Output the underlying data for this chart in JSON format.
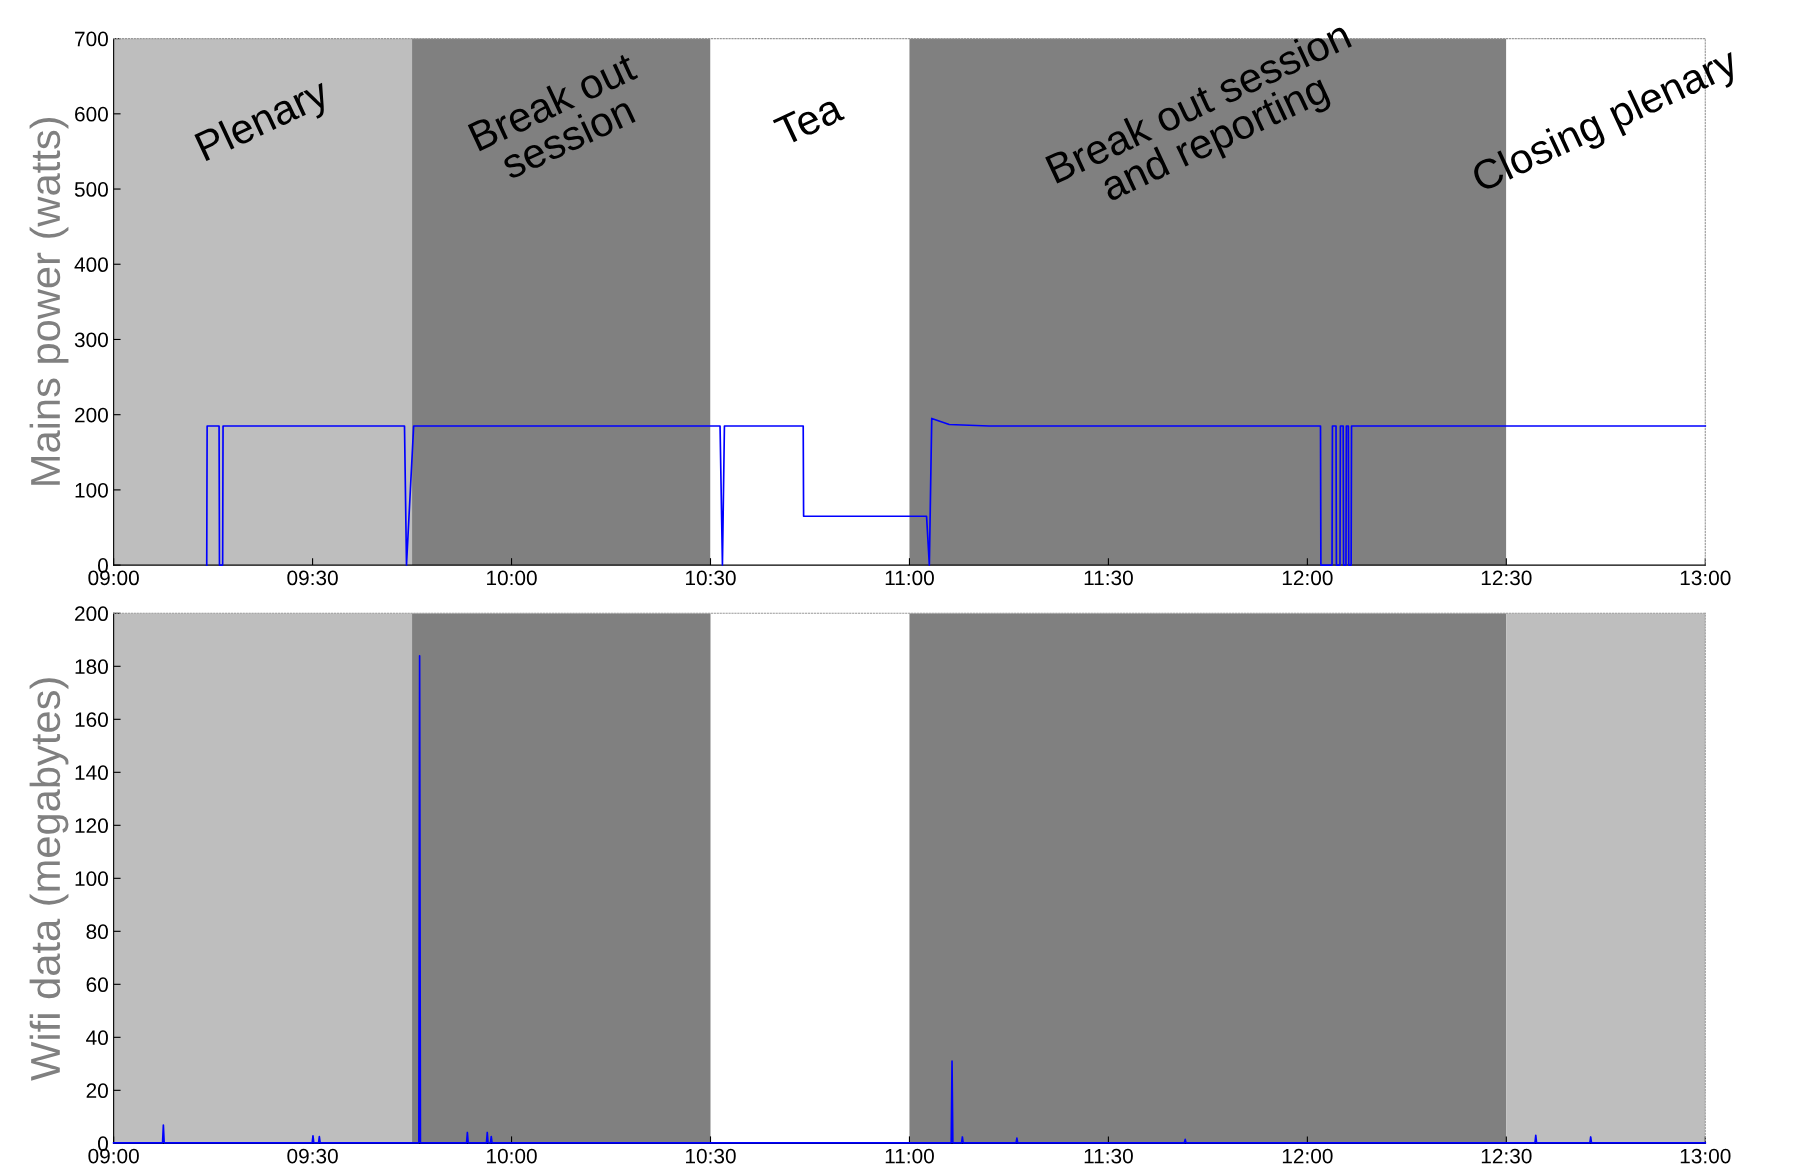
{
  "chart_data": [
    {
      "type": "line",
      "ylabel": "Mains power (watts)",
      "xlim": [
        9,
        13
      ],
      "ylim": [
        0,
        700
      ],
      "xticks": [
        {
          "value": 9,
          "label": "09:00"
        },
        {
          "value": 9.5,
          "label": "09:30"
        },
        {
          "value": 10,
          "label": "10:00"
        },
        {
          "value": 10.5,
          "label": "10:30"
        },
        {
          "value": 11,
          "label": "11:00"
        },
        {
          "value": 11.5,
          "label": "11:30"
        },
        {
          "value": 12,
          "label": "12:00"
        },
        {
          "value": 12.5,
          "label": "12:30"
        },
        {
          "value": 13,
          "label": "13:00"
        }
      ],
      "yticks": [
        0,
        100,
        200,
        300,
        400,
        500,
        600,
        700
      ],
      "grid": false,
      "legend": false,
      "marker": "none",
      "line_style": "solid",
      "bands": [
        {
          "axis": "x",
          "from": 9,
          "to": 9.75,
          "label": "Plenary",
          "color": "#bebebe"
        },
        {
          "axis": "x",
          "from": 9.75,
          "to": 10.5,
          "label": "Break out\nsession",
          "color": "#808080"
        },
        {
          "axis": "x",
          "from": 10.5,
          "to": 11,
          "label": "Tea",
          "color": "#ffffff"
        },
        {
          "axis": "x",
          "from": 11,
          "to": 12.5,
          "label": "Break out session\nand reporting",
          "color": "#808080"
        },
        {
          "axis": "x",
          "from": 12.5,
          "to": 13,
          "label": "Closing plenary",
          "color": "#ffffff"
        }
      ],
      "series": [
        {
          "color": "#0000ff",
          "x": [
            9.234,
            9.235,
            9.265,
            9.266,
            9.274,
            9.275,
            9.731,
            9.736,
            9.754,
            10.0,
            10.25,
            10.524,
            10.53,
            10.535,
            10.733,
            10.734,
            10.9,
            11.043,
            11.05,
            11.056,
            11.1,
            11.2,
            11.5,
            12.0,
            12.033,
            12.034,
            12.062,
            12.063,
            12.072,
            12.073,
            12.082,
            12.083,
            12.09,
            12.091,
            12.097,
            12.098,
            12.103,
            12.104,
            12.11,
            12.111,
            12.5,
            13.0
          ],
          "values": [
            0,
            185,
            185,
            0,
            0,
            185,
            185,
            0,
            185,
            185,
            185,
            185,
            0,
            185,
            185,
            65,
            65,
            65,
            0,
            195,
            187,
            185,
            185,
            185,
            185,
            0,
            0,
            185,
            185,
            0,
            0,
            185,
            185,
            0,
            0,
            185,
            185,
            0,
            0,
            185,
            185,
            185
          ]
        }
      ]
    },
    {
      "type": "line",
      "ylabel": "Wifi data (megabytes)",
      "xlim": [
        9,
        13
      ],
      "ylim": [
        0,
        200
      ],
      "xticks": [
        {
          "value": 9,
          "label": "09:00"
        },
        {
          "value": 9.5,
          "label": "09:30"
        },
        {
          "value": 10,
          "label": "10:00"
        },
        {
          "value": 10.5,
          "label": "10:30"
        },
        {
          "value": 11,
          "label": "11:00"
        },
        {
          "value": 11.5,
          "label": "11:30"
        },
        {
          "value": 12,
          "label": "12:00"
        },
        {
          "value": 12.5,
          "label": "12:30"
        },
        {
          "value": 13,
          "label": "13:00"
        }
      ],
      "yticks": [
        0,
        20,
        40,
        60,
        80,
        100,
        120,
        140,
        160,
        180,
        200
      ],
      "grid": false,
      "legend": false,
      "marker": "none",
      "line_style": "solid",
      "bands": [
        {
          "axis": "x",
          "from": 9,
          "to": 9.75,
          "color": "#bebebe"
        },
        {
          "axis": "x",
          "from": 9.75,
          "to": 10.5,
          "color": "#808080"
        },
        {
          "axis": "x",
          "from": 11,
          "to": 12.5,
          "color": "#808080"
        },
        {
          "axis": "x",
          "from": 12.5,
          "to": 13,
          "color": "#bebebe"
        }
      ],
      "series": [
        {
          "color": "#0000ff",
          "x": [
            9.0,
            9.123,
            9.125,
            9.127,
            9.499,
            9.501,
            9.503,
            9.515,
            9.517,
            9.519,
            9.767,
            9.769,
            9.771,
            9.887,
            9.889,
            9.891,
            9.937,
            9.939,
            9.941,
            9.947,
            9.949,
            9.951,
            10.5,
            11.0,
            11.105,
            11.107,
            11.109,
            11.131,
            11.133,
            11.135,
            11.268,
            11.27,
            11.272,
            11.691,
            11.693,
            11.695,
            12.5,
            12.572,
            12.574,
            12.576,
            12.71,
            12.712,
            12.714,
            13.0
          ],
          "values": [
            0.2,
            0.2,
            6.9,
            0.2,
            0.2,
            2.8,
            0.2,
            0.2,
            2.5,
            0.2,
            0.2,
            184,
            0.2,
            0.2,
            4.1,
            0.2,
            0.2,
            4.1,
            0.2,
            0.2,
            2.5,
            0.2,
            0.2,
            0.2,
            0.2,
            31,
            0.2,
            0.2,
            2.4,
            0.2,
            0.2,
            2.0,
            0.2,
            0.2,
            1.5,
            0.2,
            0.2,
            0.2,
            3.0,
            0.2,
            0.2,
            2.4,
            0.2,
            0.2
          ]
        }
      ]
    }
  ]
}
